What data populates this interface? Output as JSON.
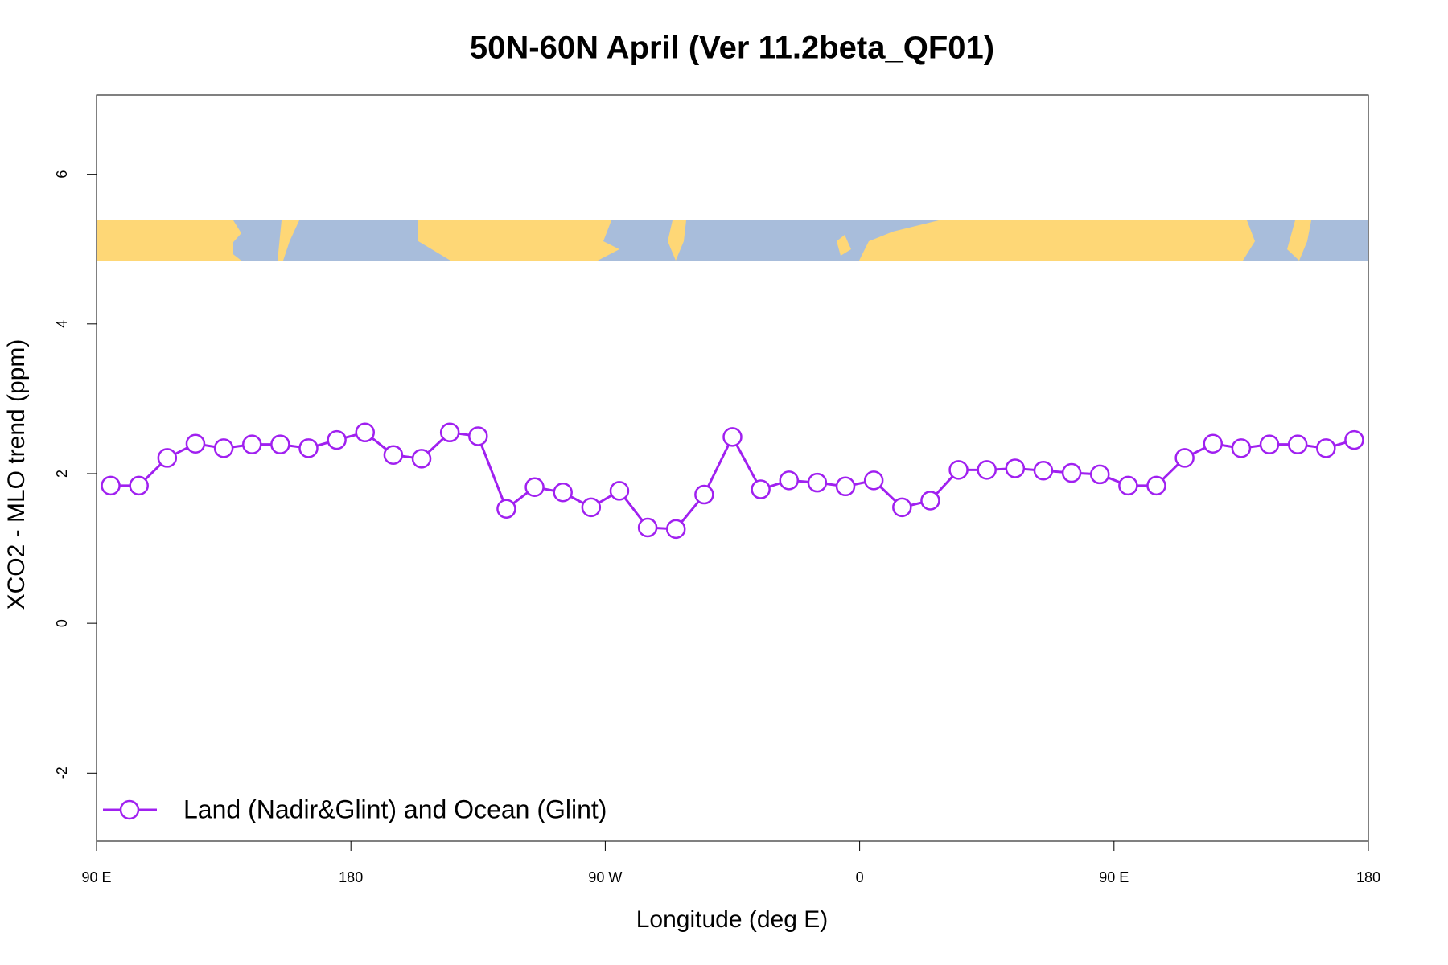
{
  "chart_data": {
    "type": "line",
    "title": "50N-60N April (Ver 11.2beta_QF01)",
    "x_label": "Longitude (deg E)",
    "y_label": "XCO2 - MLO trend (ppm)",
    "x": [
      95,
      105,
      115,
      125,
      135,
      145,
      155,
      165,
      175,
      185,
      195,
      205,
      215,
      225,
      235,
      245,
      255,
      265,
      275,
      285,
      295,
      305,
      315,
      325,
      335,
      345,
      355,
      365,
      375,
      385,
      395,
      405,
      415,
      425,
      435,
      445,
      455,
      465,
      475,
      485,
      495,
      505,
      515,
      525,
      535
    ],
    "series": [
      {
        "name": "Land (Nadir&Glint) and Ocean (Glint)",
        "color": "#a020f0",
        "values": [
          1.84,
          1.84,
          2.21,
          2.4,
          2.34,
          2.39,
          2.39,
          2.34,
          2.45,
          2.55,
          2.25,
          2.2,
          2.55,
          2.5,
          1.53,
          1.82,
          1.75,
          1.55,
          1.77,
          1.28,
          1.26,
          1.72,
          2.49,
          1.79,
          1.91,
          1.88,
          1.83,
          1.91,
          1.55,
          1.64,
          2.05,
          2.05,
          2.07,
          2.04,
          2.01,
          1.99,
          1.84,
          1.84,
          2.21,
          2.4,
          2.34,
          2.39,
          2.39,
          2.34,
          2.45
        ]
      }
    ],
    "xlim": [
      90,
      540
    ],
    "xticks": [
      {
        "value": 90,
        "label": "90 E"
      },
      180,
      {
        "value": 270,
        "label": "90 W"
      },
      {
        "value": 360,
        "label": "0"
      },
      {
        "value": 450,
        "label": "90 E"
      },
      180
    ],
    "ylim": [
      -2.91,
      7.06
    ],
    "yticks": [
      -2,
      0,
      2,
      4,
      6
    ],
    "legend": "bottom-left"
  }
}
